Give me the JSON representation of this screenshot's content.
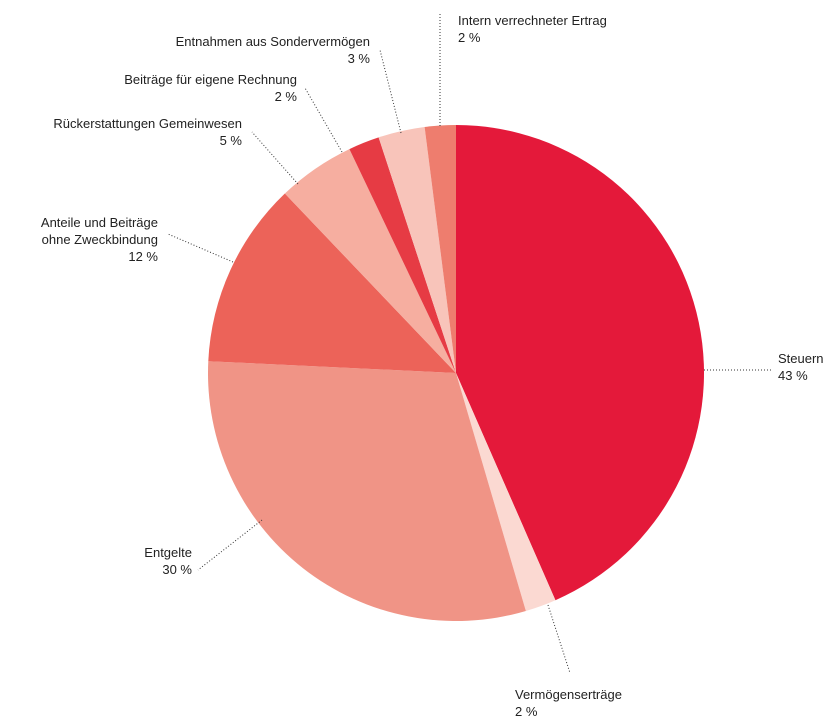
{
  "chart_data": {
    "type": "pie",
    "categories": [
      "Steuern",
      "Vermögenserträge",
      "Entgelte",
      "Anteile und Beiträge\nohne Zweckbindung",
      "Rückerstattungen Gemeinwesen",
      "Beiträge für eigene Rechnung",
      "Entnahmen aus Sondervermögen",
      "Intern verrechneter Ertrag"
    ],
    "values": [
      43,
      2,
      30,
      12,
      5,
      2,
      3,
      2
    ],
    "value_labels": [
      "43 %",
      "2 %",
      "30 %",
      "12 %",
      "5 %",
      "2 %",
      "3 %",
      "2 %"
    ],
    "colors": [
      "#e4193a",
      "#fbd9d2",
      "#f09486",
      "#ec6359",
      "#f6aea0",
      "#e63b44",
      "#f8c4ba",
      "#ee7d6e"
    ]
  }
}
